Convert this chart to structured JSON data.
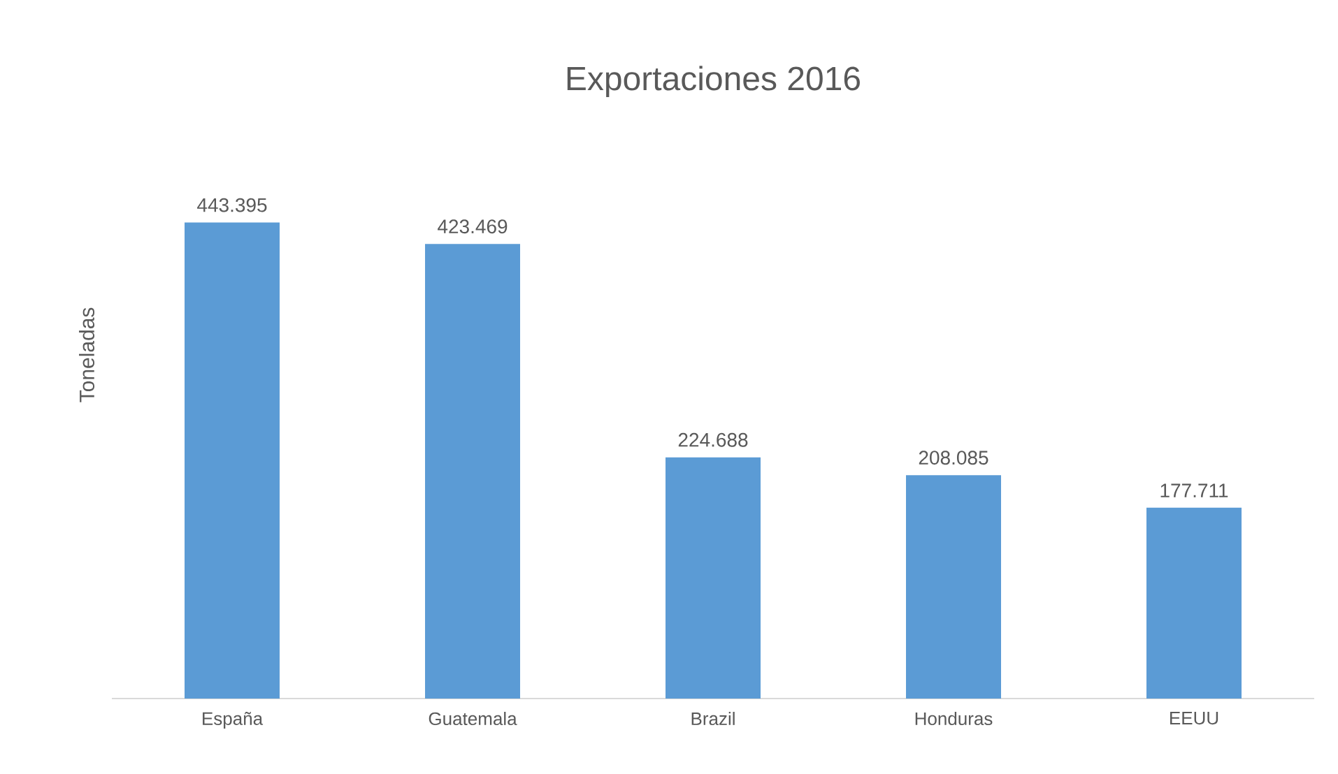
{
  "chart_data": {
    "type": "bar",
    "title": "Exportaciones 2016",
    "ylabel": "Toneladas",
    "categories": [
      "España",
      "Guatemala",
      "Brazil",
      "Honduras",
      "EEUU"
    ],
    "values": [
      443.395,
      423.469,
      224.688,
      208.085,
      177.711
    ],
    "color": "#5b9bd5",
    "data_labels": true,
    "tick_labels": "x"
  }
}
